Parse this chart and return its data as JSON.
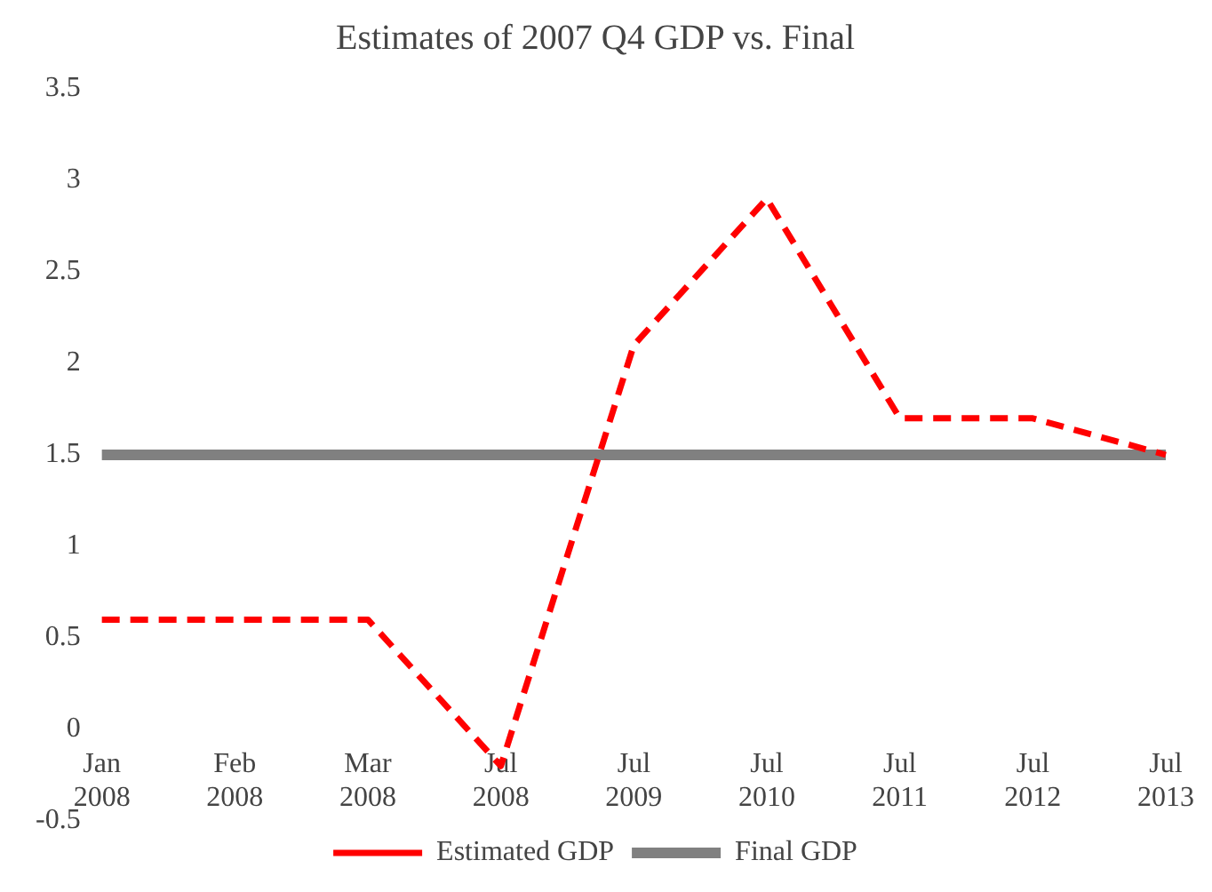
{
  "chart_data": {
    "type": "line",
    "title": "Estimates of 2007 Q4 GDP vs. Final",
    "categories": [
      "Jan 2008",
      "Feb 2008",
      "Mar 2008",
      "Jul 2008",
      "Jul 2009",
      "Jul 2010",
      "Jul 2011",
      "Jul 2012",
      "Jul 2013"
    ],
    "series": [
      {
        "name": "Estimated GDP",
        "color": "#ff0000",
        "line_style": "dashed",
        "values": [
          0.6,
          0.6,
          0.6,
          -0.2,
          2.1,
          2.9,
          1.7,
          1.7,
          1.5
        ]
      },
      {
        "name": "Final GDP",
        "color": "#808080",
        "line_style": "solid",
        "values": [
          1.5,
          1.5,
          1.5,
          1.5,
          1.5,
          1.5,
          1.5,
          1.5,
          1.5
        ]
      }
    ],
    "ylim": [
      -0.5,
      3.5
    ],
    "yticks": [
      -0.5,
      0,
      0.5,
      1,
      1.5,
      2,
      2.5,
      3,
      3.5
    ],
    "grid": false,
    "legend": "bottom",
    "marker": "none"
  }
}
